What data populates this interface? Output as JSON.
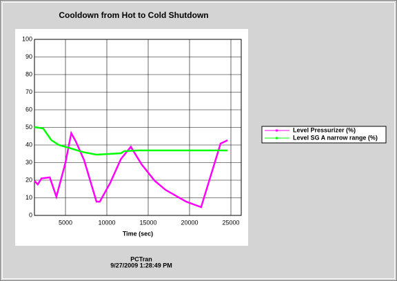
{
  "chart_data": {
    "type": "line",
    "title": "Cooldown from Hot to Cold Shutdown",
    "x_label": "Time (sec)",
    "footer": [
      "PCTran",
      "9/27/2009 1:28:49 PM"
    ],
    "xlim": [
      1250,
      26250
    ],
    "xticks": [
      5000,
      10000,
      15000,
      20000,
      25000
    ],
    "ylim": [
      0,
      100
    ],
    "yticks": [
      0,
      10,
      20,
      30,
      40,
      50,
      60,
      70,
      80,
      90,
      100
    ],
    "grid": true,
    "legend": "right",
    "series": [
      {
        "name": "Level Pressurizer (%)",
        "color": "#ff00ff",
        "x": [
          1250,
          1650,
          2100,
          3100,
          3900,
          5000,
          5700,
          6250,
          7250,
          8750,
          9150,
          10400,
          11700,
          12900,
          14200,
          15800,
          17100,
          19600,
          21400,
          23750,
          24600
        ],
        "values": [
          19.6,
          17.6,
          21,
          21.6,
          10.6,
          30,
          46.7,
          42,
          31.4,
          7.8,
          7.8,
          18.4,
          32,
          39,
          29,
          19.6,
          14.5,
          7.8,
          4.7,
          40.8,
          42.7
        ]
      },
      {
        "name": "Level SG A narrow range (%)",
        "color": "#00ff00",
        "x": [
          1250,
          2300,
          3300,
          4200,
          5400,
          7100,
          8750,
          11700,
          12100,
          13750,
          24600
        ],
        "values": [
          50.2,
          49.4,
          42.7,
          40,
          38.4,
          36,
          34.5,
          35.3,
          36.5,
          36.9,
          36.9
        ]
      }
    ]
  }
}
